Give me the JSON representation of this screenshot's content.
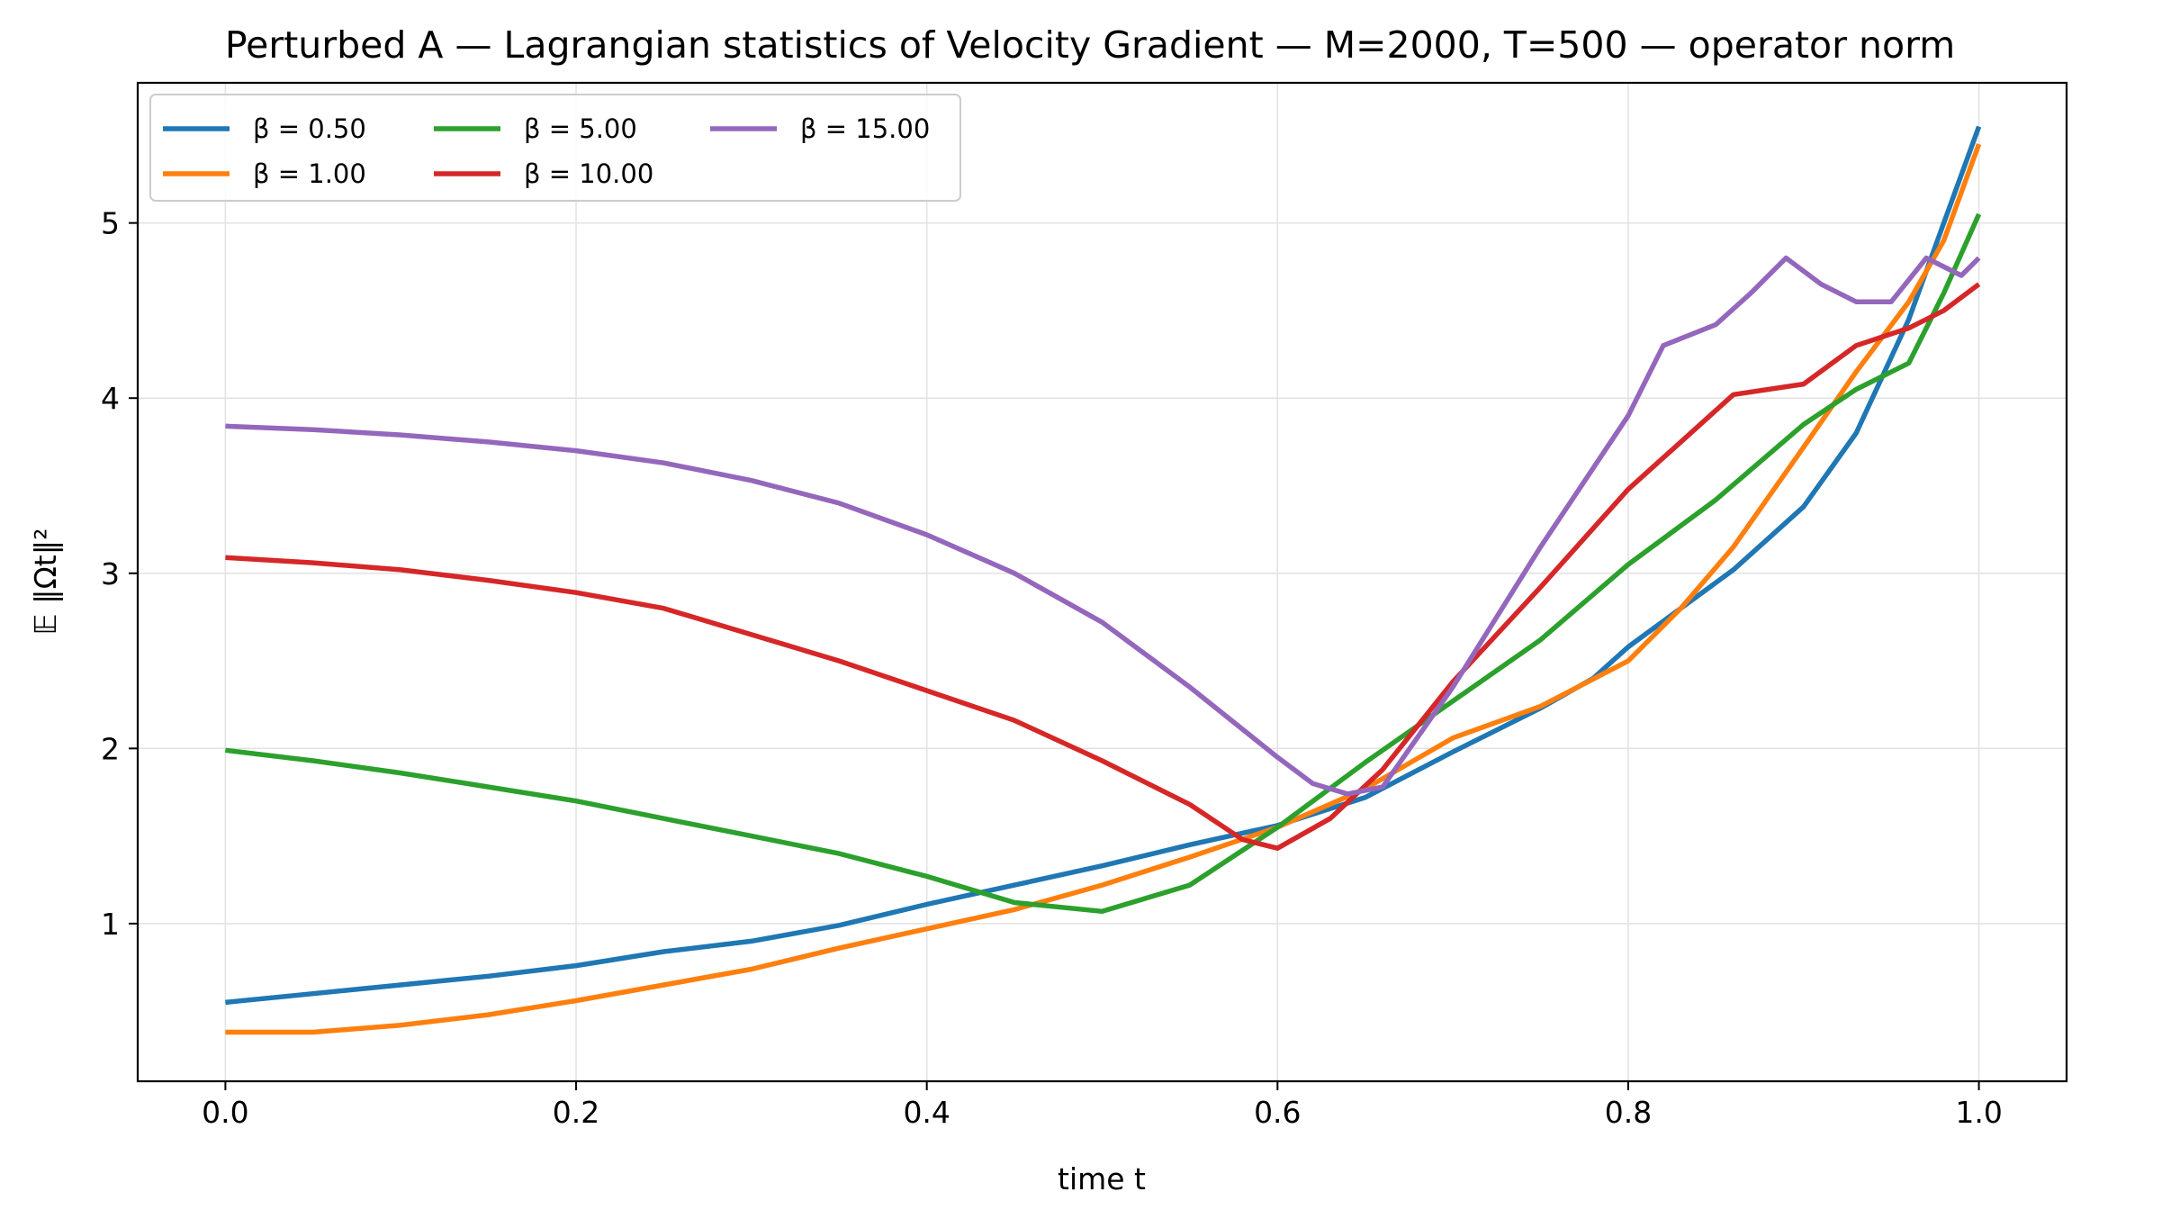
{
  "chart_data": {
    "type": "line",
    "title": "Perturbed A — Lagrangian statistics of Velocity Gradient — M=2000, T=500 — operator norm",
    "xlabel": "time t",
    "ylabel": "𝔼 ‖Ωt‖²",
    "xlim": [
      -0.05,
      1.05
    ],
    "ylim": [
      0.1,
      5.8
    ],
    "xticks": [
      0.0,
      0.2,
      0.4,
      0.6,
      0.8,
      1.0
    ],
    "xtick_labels": [
      "0.0",
      "0.2",
      "0.4",
      "0.6",
      "0.8",
      "1.0"
    ],
    "yticks": [
      1,
      2,
      3,
      4,
      5
    ],
    "ytick_labels": [
      "1",
      "2",
      "3",
      "4",
      "5"
    ],
    "grid": true,
    "legend_position": "top-left",
    "legend_columns": 3,
    "series": [
      {
        "name": "β = 0.50",
        "color": "#1f77b4",
        "x": [
          0.0,
          0.05,
          0.1,
          0.15,
          0.2,
          0.25,
          0.3,
          0.35,
          0.4,
          0.45,
          0.5,
          0.55,
          0.6,
          0.65,
          0.7,
          0.75,
          0.78,
          0.8,
          0.83,
          0.86,
          0.88,
          0.9,
          0.93,
          0.96,
          0.98,
          1.0
        ],
        "y": [
          0.55,
          0.6,
          0.65,
          0.7,
          0.76,
          0.84,
          0.9,
          0.99,
          1.11,
          1.22,
          1.33,
          1.45,
          1.56,
          1.72,
          1.98,
          2.23,
          2.4,
          2.58,
          2.8,
          3.02,
          3.2,
          3.38,
          3.8,
          4.45,
          5.0,
          5.55
        ]
      },
      {
        "name": "β = 1.00",
        "color": "#ff7f0e",
        "x": [
          0.0,
          0.05,
          0.1,
          0.15,
          0.2,
          0.25,
          0.3,
          0.35,
          0.4,
          0.45,
          0.5,
          0.55,
          0.6,
          0.65,
          0.7,
          0.75,
          0.8,
          0.83,
          0.86,
          0.9,
          0.93,
          0.96,
          0.98,
          1.0
        ],
        "y": [
          0.38,
          0.38,
          0.42,
          0.48,
          0.56,
          0.65,
          0.74,
          0.86,
          0.97,
          1.08,
          1.22,
          1.38,
          1.55,
          1.77,
          2.06,
          2.24,
          2.5,
          2.8,
          3.15,
          3.72,
          4.15,
          4.55,
          4.9,
          5.45
        ]
      },
      {
        "name": "β = 5.00",
        "color": "#2ca02c",
        "x": [
          0.0,
          0.05,
          0.1,
          0.15,
          0.2,
          0.25,
          0.3,
          0.35,
          0.4,
          0.45,
          0.5,
          0.55,
          0.6,
          0.65,
          0.7,
          0.75,
          0.8,
          0.85,
          0.9,
          0.93,
          0.96,
          0.98,
          1.0
        ],
        "y": [
          1.99,
          1.93,
          1.86,
          1.78,
          1.7,
          1.6,
          1.5,
          1.4,
          1.27,
          1.12,
          1.07,
          1.22,
          1.55,
          1.92,
          2.27,
          2.62,
          3.05,
          3.42,
          3.85,
          4.05,
          4.2,
          4.6,
          5.05
        ]
      },
      {
        "name": "β = 10.00",
        "color": "#d62728",
        "x": [
          0.0,
          0.05,
          0.1,
          0.15,
          0.2,
          0.25,
          0.3,
          0.35,
          0.4,
          0.45,
          0.5,
          0.55,
          0.58,
          0.6,
          0.63,
          0.66,
          0.7,
          0.75,
          0.8,
          0.83,
          0.86,
          0.9,
          0.93,
          0.96,
          0.98,
          1.0
        ],
        "y": [
          3.09,
          3.06,
          3.02,
          2.96,
          2.89,
          2.8,
          2.65,
          2.5,
          2.33,
          2.16,
          1.93,
          1.68,
          1.48,
          1.43,
          1.6,
          1.88,
          2.38,
          2.92,
          3.48,
          3.75,
          4.02,
          4.08,
          4.3,
          4.4,
          4.5,
          4.65
        ]
      },
      {
        "name": "β = 15.00",
        "color": "#9467bd",
        "x": [
          0.0,
          0.05,
          0.1,
          0.15,
          0.2,
          0.25,
          0.3,
          0.35,
          0.4,
          0.45,
          0.5,
          0.55,
          0.6,
          0.62,
          0.64,
          0.66,
          0.7,
          0.75,
          0.8,
          0.82,
          0.85,
          0.87,
          0.89,
          0.91,
          0.93,
          0.95,
          0.97,
          0.99,
          1.0
        ],
        "y": [
          3.84,
          3.82,
          3.79,
          3.75,
          3.7,
          3.63,
          3.53,
          3.4,
          3.22,
          3.0,
          2.72,
          2.35,
          1.95,
          1.8,
          1.74,
          1.78,
          2.35,
          3.15,
          3.9,
          4.3,
          4.42,
          4.6,
          4.8,
          4.65,
          4.55,
          4.55,
          4.8,
          4.7,
          4.8
        ]
      }
    ]
  }
}
